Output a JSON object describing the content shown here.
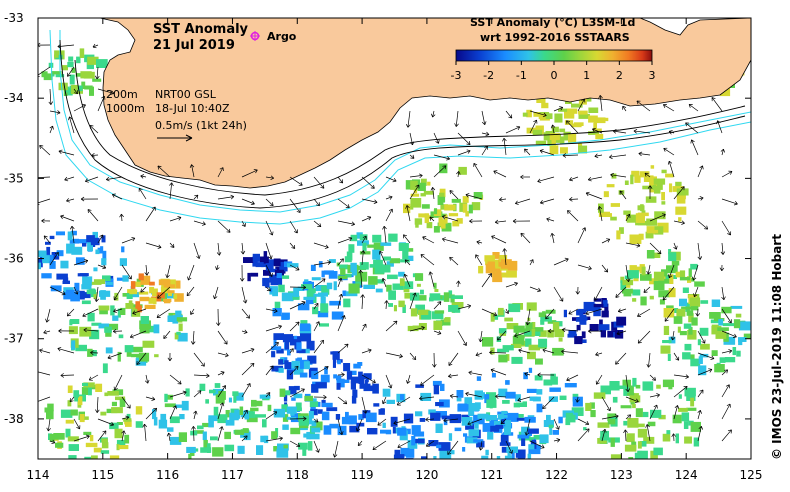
{
  "map": {
    "title": "SST Anomaly",
    "date": "21 Jul 2019",
    "argo_label": "Argo",
    "legend_200m": "200m",
    "legend_1000m": "1000m",
    "current_source": "NRT00 GSL",
    "current_time": "18-Jul 10:40Z",
    "scale_text": "0.5m/s (1kt 24h)",
    "credit": "© IMOS 23-Jul-2019 11:08 Hobart",
    "colorbar": {
      "title": "SST Anomaly (°C) L3SM-1d",
      "subtitle": "wrt 1992-2016 SSTAARS",
      "ticks": [
        "-3",
        "-2",
        "-1",
        "0",
        "1",
        "2",
        "3"
      ],
      "colors": [
        "#08088a",
        "#0a3fd0",
        "#1a8cff",
        "#2fc2e8",
        "#3ad98c",
        "#5ed14a",
        "#9ad63c",
        "#d8d832",
        "#f0b030",
        "#f07a22",
        "#d83a18",
        "#8a0e0e"
      ]
    },
    "x_ticks": [
      "114",
      "115",
      "116",
      "117",
      "118",
      "119",
      "120",
      "121",
      "122",
      "123",
      "124",
      "125"
    ],
    "y_ticks": [
      "-33",
      "-34",
      "-35",
      "-36",
      "-37",
      "-38"
    ],
    "extent": {
      "lon": [
        114,
        125
      ],
      "lat": [
        -38.5,
        -33
      ]
    },
    "land_color": "#f9c99c",
    "isobath_color": "#30d8f0"
  }
}
